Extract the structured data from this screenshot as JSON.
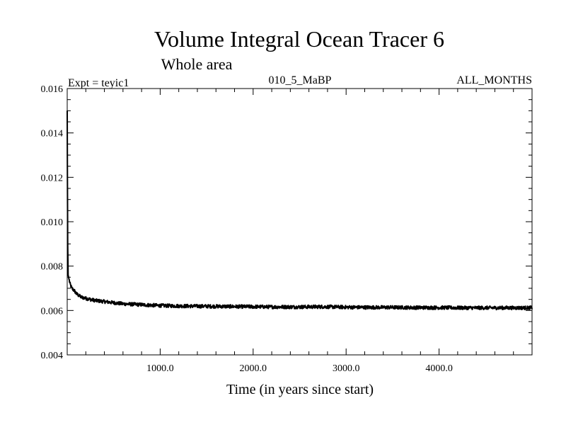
{
  "chart_data": {
    "type": "line",
    "title": "Volume Integral Ocean Tracer 6",
    "subtitle": "Whole area",
    "annotations": {
      "left": "Expt = teyic1",
      "center": "010_5_MaBP",
      "right": "ALL_MONTHS"
    },
    "xlabel": "Time (in years since start)",
    "ylabel": "",
    "xlim": [
      0,
      5000
    ],
    "ylim": [
      0.004,
      0.016
    ],
    "x_ticks": [
      1000,
      2000,
      3000,
      4000
    ],
    "x_tick_labels": [
      "1000.0",
      "2000.0",
      "3000.0",
      "4000.0"
    ],
    "y_ticks": [
      0.004,
      0.006,
      0.008,
      0.01,
      0.012,
      0.014,
      0.016
    ],
    "y_tick_labels": [
      "0.004",
      "0.006",
      "0.008",
      "0.010",
      "0.012",
      "0.014",
      "0.016"
    ],
    "grid": false,
    "line_color": "#000000",
    "series": [
      {
        "x": [
          0,
          2,
          5,
          10,
          20,
          30,
          50,
          75,
          100,
          150,
          200,
          250,
          300,
          400,
          500,
          600,
          700,
          800,
          900,
          1000,
          1250,
          1500,
          1750,
          2000,
          2250,
          2500,
          2750,
          3000,
          3250,
          3500,
          3750,
          4000,
          4250,
          4500,
          4750,
          5000
        ],
        "values": [
          0.015,
          0.012,
          0.009,
          0.0076,
          0.0074,
          0.0072,
          0.007,
          0.0069,
          0.00675,
          0.0066,
          0.00655,
          0.0065,
          0.00645,
          0.0064,
          0.00635,
          0.0063,
          0.00628,
          0.00626,
          0.00624,
          0.00622,
          0.0062,
          0.00619,
          0.00618,
          0.00617,
          0.00616,
          0.00616,
          0.00617,
          0.00615,
          0.00614,
          0.00614,
          0.00613,
          0.00613,
          0.00612,
          0.00612,
          0.00612,
          0.00612
        ]
      }
    ]
  }
}
